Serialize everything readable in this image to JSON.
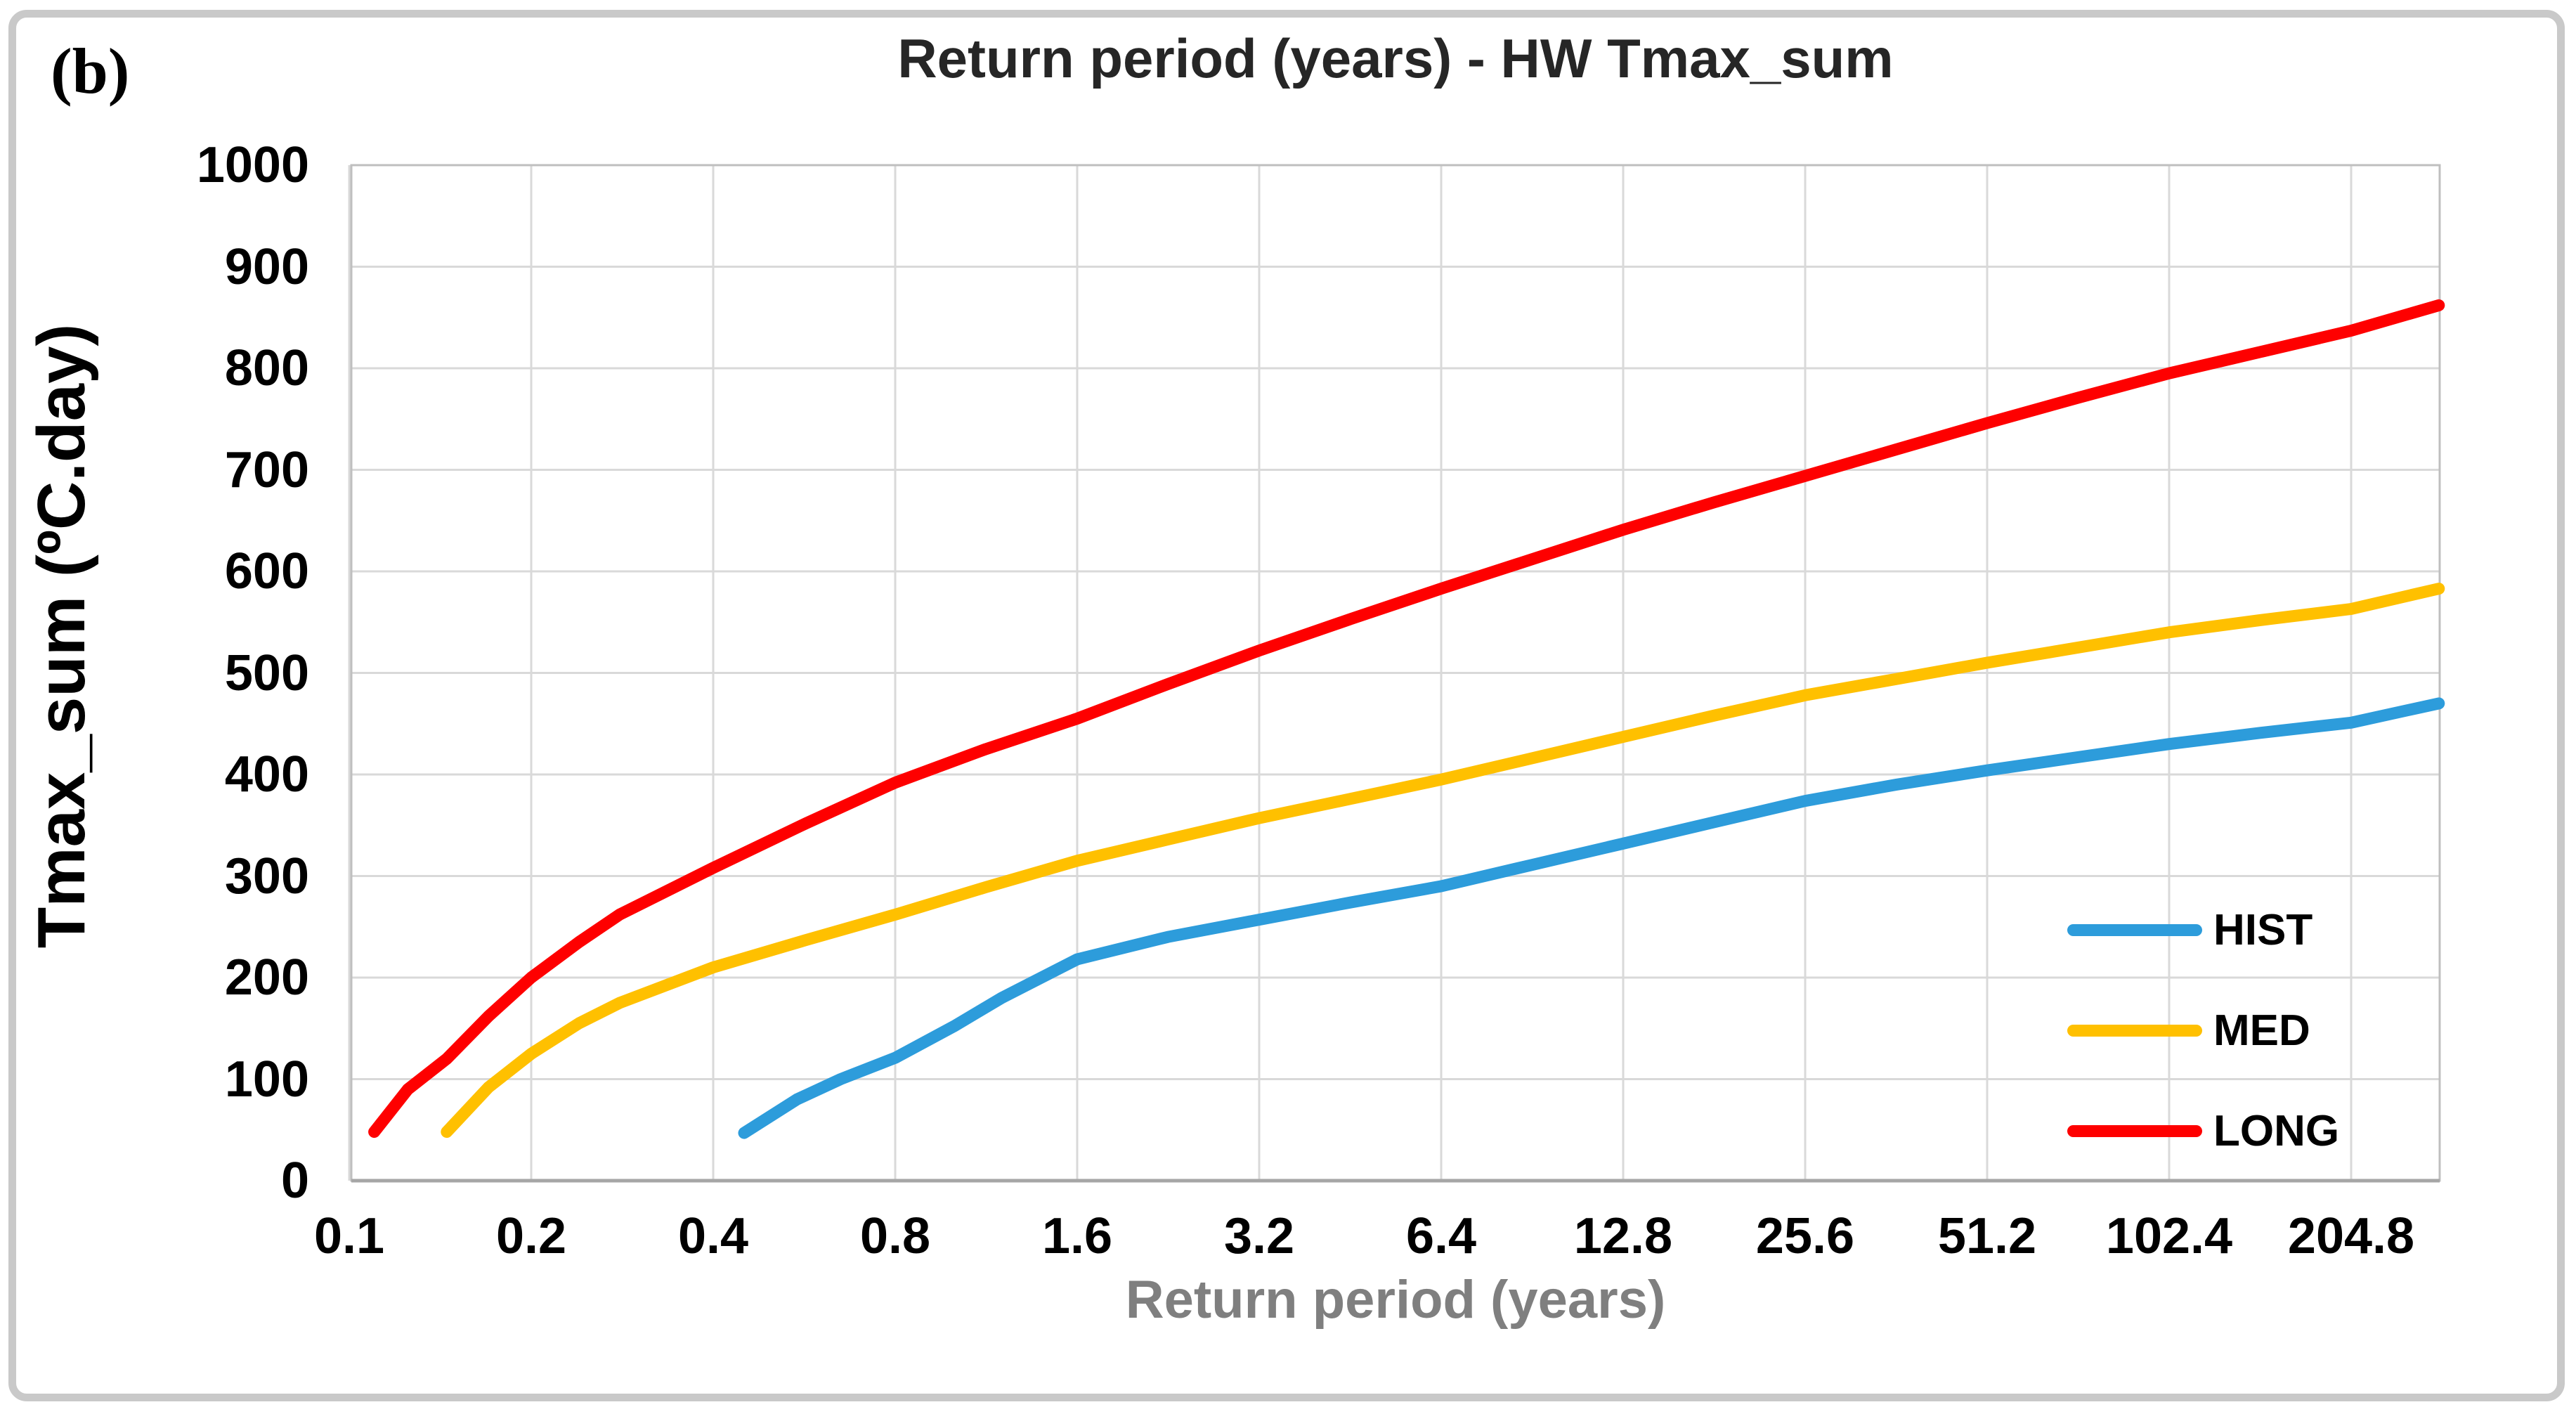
{
  "panel_label": "(b)",
  "chart_data": {
    "type": "line",
    "title": "Return period (years) - HW Tmax_sum",
    "xlabel": "Return period (years)",
    "ylabel": "Tmax_sum (ºC.day)",
    "x_scale": "log2",
    "x_ticks": [
      0.1,
      0.2,
      0.4,
      0.8,
      1.6,
      3.2,
      6.4,
      12.8,
      25.6,
      51.2,
      102.4,
      204.8
    ],
    "x_tick_labels": [
      "0.1",
      "0.2",
      "0.4",
      "0.8",
      "1.6",
      "3.2",
      "6.4",
      "12.8",
      "25.6",
      "51.2",
      "102.4",
      "204.8"
    ],
    "ylim": [
      0,
      1000
    ],
    "y_tick_step": 100,
    "grid": true,
    "grid_color": "#d9d9d9",
    "axis_color": "#bfbfbf",
    "legend_position": "inside-right",
    "series": [
      {
        "name": "HIST",
        "color": "#2D9CDB",
        "points": [
          [
            0.45,
            47
          ],
          [
            0.55,
            80
          ],
          [
            0.65,
            100
          ],
          [
            0.8,
            121
          ],
          [
            1.0,
            152
          ],
          [
            1.2,
            180
          ],
          [
            1.6,
            218
          ],
          [
            2.26,
            240
          ],
          [
            3.2,
            257
          ],
          [
            4.53,
            274
          ],
          [
            6.4,
            290
          ],
          [
            9.05,
            311
          ],
          [
            12.8,
            332
          ],
          [
            18.1,
            353
          ],
          [
            25.6,
            374
          ],
          [
            36.2,
            390
          ],
          [
            51.2,
            404
          ],
          [
            72.4,
            417
          ],
          [
            102.4,
            430
          ],
          [
            144.8,
            441
          ],
          [
            204.8,
            451
          ],
          [
            286,
            470
          ]
        ]
      },
      {
        "name": "MED",
        "color": "#FFC000",
        "points": [
          [
            0.145,
            48
          ],
          [
            0.17,
            92
          ],
          [
            0.2,
            125
          ],
          [
            0.24,
            155
          ],
          [
            0.28,
            175
          ],
          [
            0.4,
            210
          ],
          [
            0.57,
            237
          ],
          [
            0.8,
            262
          ],
          [
            1.13,
            289
          ],
          [
            1.6,
            315
          ],
          [
            2.26,
            336
          ],
          [
            3.2,
            357
          ],
          [
            4.53,
            376
          ],
          [
            6.4,
            395
          ],
          [
            9.05,
            416
          ],
          [
            12.8,
            437
          ],
          [
            18.1,
            458
          ],
          [
            25.6,
            478
          ],
          [
            36.2,
            494
          ],
          [
            51.2,
            510
          ],
          [
            72.4,
            525
          ],
          [
            102.4,
            540
          ],
          [
            144.8,
            552
          ],
          [
            204.8,
            563
          ],
          [
            286,
            583
          ]
        ]
      },
      {
        "name": "LONG",
        "color": "#FE0000",
        "points": [
          [
            0.11,
            48
          ],
          [
            0.125,
            90
          ],
          [
            0.145,
            120
          ],
          [
            0.17,
            162
          ],
          [
            0.2,
            200
          ],
          [
            0.24,
            235
          ],
          [
            0.28,
            262
          ],
          [
            0.4,
            308
          ],
          [
            0.57,
            352
          ],
          [
            0.8,
            392
          ],
          [
            1.13,
            425
          ],
          [
            1.6,
            455
          ],
          [
            2.26,
            489
          ],
          [
            3.2,
            522
          ],
          [
            4.53,
            553
          ],
          [
            6.4,
            583
          ],
          [
            9.05,
            612
          ],
          [
            12.8,
            641
          ],
          [
            18.1,
            668
          ],
          [
            25.6,
            694
          ],
          [
            36.2,
            720
          ],
          [
            51.2,
            746
          ],
          [
            72.4,
            771
          ],
          [
            102.4,
            795
          ],
          [
            144.8,
            816
          ],
          [
            204.8,
            837
          ],
          [
            286,
            862
          ]
        ]
      }
    ]
  }
}
